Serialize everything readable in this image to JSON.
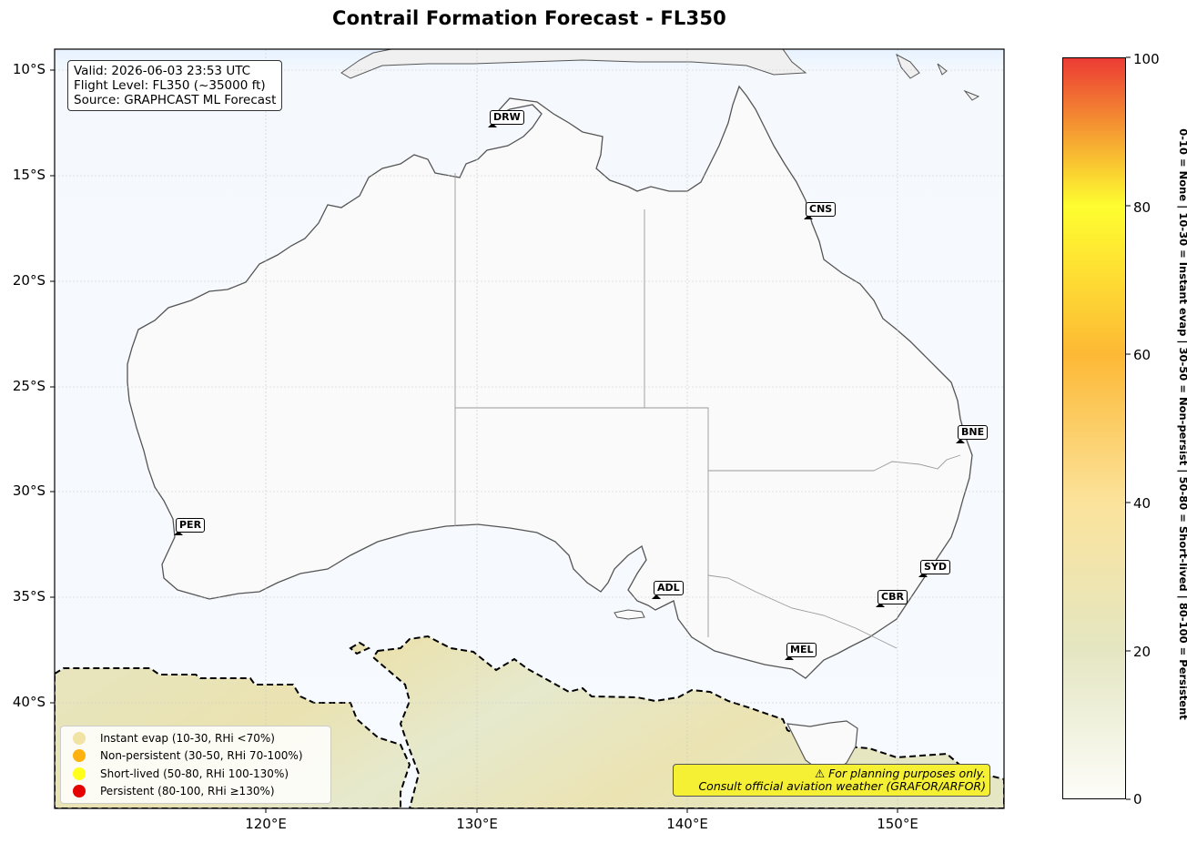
{
  "title": "Contrail Formation Forecast - FL350",
  "info": {
    "valid": "Valid: 2026-06-03 23:53 UTC",
    "flight_level": "Flight Level: FL350 (~35000 ft)",
    "source": "Source: GRAPHCAST ML Forecast"
  },
  "axes": {
    "lat_ticks": [
      "10°S",
      "15°S",
      "20°S",
      "25°S",
      "30°S",
      "35°S",
      "40°S"
    ],
    "lon_ticks": [
      "120°E",
      "130°E",
      "140°E",
      "150°E"
    ]
  },
  "cities": [
    {
      "code": "DRW"
    },
    {
      "code": "CNS"
    },
    {
      "code": "BNE"
    },
    {
      "code": "PER"
    },
    {
      "code": "SYD"
    },
    {
      "code": "ADL"
    },
    {
      "code": "CBR"
    },
    {
      "code": "MEL"
    }
  ],
  "legend": [
    {
      "label": "Instant evap (10-30, RHi <70%)",
      "color": "#f0e3a3"
    },
    {
      "label": "Non-persistent (30-50, RHi 70-100%)",
      "color": "#ffb20f"
    },
    {
      "label": "Short-lived (50-80, RHi 100-130%)",
      "color": "#ffff1a"
    },
    {
      "label": "Persistent (80-100, RHi ≥130%)",
      "color": "#e60000"
    }
  ],
  "warning": {
    "line1": "⚠ For planning purposes only.",
    "line2": "Consult official aviation weather (GRAFOR/ARFOR)"
  },
  "colorbar": {
    "ticks": [
      "0",
      "20",
      "40",
      "60",
      "80",
      "100"
    ],
    "label": "0-10 = None  |  10-30 = Instant evap  |  30-50 = Non-persist  |  50-80 = Short-lived  |  80-100 = Persistent",
    "colors": [
      "#fdfdf9",
      "#e4e6c2",
      "#fbe39b",
      "#fdb935",
      "#fefe30",
      "#ec3b34"
    ]
  }
}
